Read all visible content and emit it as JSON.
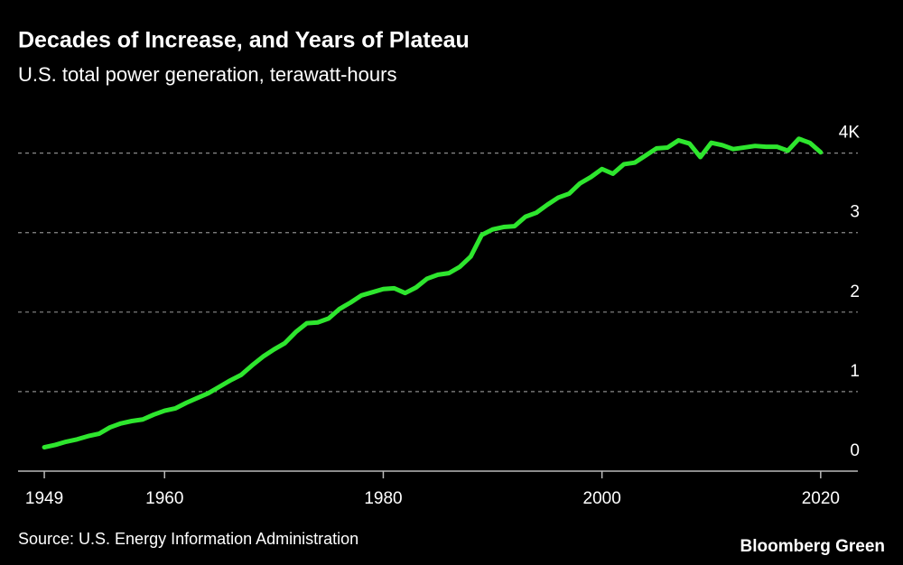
{
  "chart_data": {
    "type": "line",
    "title": "Decades of Increase, and Years of Plateau",
    "subtitle": "U.S. total power generation, terawatt-hours",
    "source": "Source: U.S. Energy Information Administration",
    "credit": "Bloomberg Green",
    "color": "#2ee62e",
    "grid": true,
    "x": [
      1949,
      1950,
      1951,
      1952,
      1953,
      1954,
      1955,
      1956,
      1957,
      1958,
      1959,
      1960,
      1961,
      1962,
      1963,
      1964,
      1965,
      1966,
      1967,
      1968,
      1969,
      1970,
      1971,
      1972,
      1973,
      1974,
      1975,
      1976,
      1977,
      1978,
      1979,
      1980,
      1981,
      1982,
      1983,
      1984,
      1985,
      1986,
      1987,
      1988,
      1989,
      1990,
      1991,
      1992,
      1993,
      1994,
      1995,
      1996,
      1997,
      1998,
      1999,
      2000,
      2001,
      2002,
      2003,
      2004,
      2005,
      2006,
      2007,
      2008,
      2009,
      2010,
      2011,
      2012,
      2013,
      2014,
      2015,
      2016,
      2017,
      2018,
      2019,
      2020
    ],
    "values": [
      0.3,
      0.33,
      0.37,
      0.4,
      0.44,
      0.47,
      0.55,
      0.6,
      0.63,
      0.65,
      0.71,
      0.76,
      0.79,
      0.86,
      0.92,
      0.98,
      1.06,
      1.14,
      1.21,
      1.33,
      1.44,
      1.53,
      1.61,
      1.75,
      1.86,
      1.87,
      1.92,
      2.04,
      2.12,
      2.21,
      2.25,
      2.29,
      2.3,
      2.24,
      2.31,
      2.42,
      2.47,
      2.49,
      2.57,
      2.7,
      2.97,
      3.04,
      3.07,
      3.08,
      3.2,
      3.25,
      3.35,
      3.44,
      3.49,
      3.62,
      3.7,
      3.8,
      3.74,
      3.86,
      3.88,
      3.97,
      4.06,
      4.07,
      4.16,
      4.12,
      3.95,
      4.13,
      4.1,
      4.05,
      4.07,
      4.09,
      4.08,
      4.08,
      4.03,
      4.18,
      4.13,
      4.01
    ],
    "xlim": [
      1946.6,
      2023.4
    ],
    "xticks": [
      1949,
      1960,
      1980,
      2000,
      2020
    ],
    "ylim": [
      0,
      4.2
    ],
    "yticks": [
      0,
      1,
      2,
      3,
      {
        "value": 4,
        "label": "4K"
      }
    ]
  }
}
